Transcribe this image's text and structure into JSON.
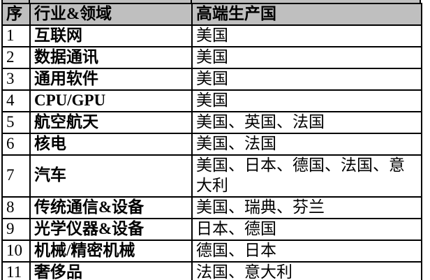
{
  "table": {
    "header_bg": "#bfbfbf",
    "border_color": "#000000",
    "headers": {
      "index": "序",
      "industry": "行业&领域",
      "countries": "高端生产国"
    },
    "rows": [
      {
        "no": "1",
        "industry": "互联网",
        "countries": "美国"
      },
      {
        "no": "2",
        "industry": "数据通讯",
        "countries": "美国"
      },
      {
        "no": "3",
        "industry": "通用软件",
        "countries": "美国"
      },
      {
        "no": "4",
        "industry": "CPU/GPU",
        "countries": "美国"
      },
      {
        "no": "5",
        "industry": "航空航天",
        "countries": "美国、英国、法国"
      },
      {
        "no": "6",
        "industry": "核电",
        "countries": "美国、法国"
      },
      {
        "no": "7",
        "industry": "汽车",
        "countries": "美国、日本、德国、法国、意大利"
      },
      {
        "no": "8",
        "industry": "传统通信&设备",
        "countries": "美国、瑞典、芬兰"
      },
      {
        "no": "9",
        "industry": "光学仪器&设备",
        "countries": "日本、德国"
      },
      {
        "no": "10",
        "industry": "机械/精密机械",
        "countries": "德国、日本"
      },
      {
        "no": "11",
        "industry": "奢侈品",
        "countries": "法国、意大利"
      }
    ]
  }
}
